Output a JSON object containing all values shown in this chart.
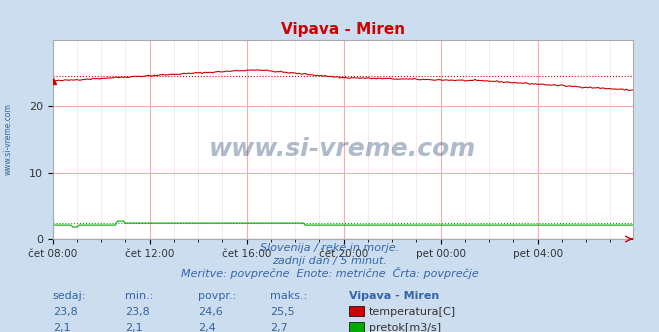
{
  "title": "Vipava - Miren",
  "bg_color": "#ccddef",
  "plot_bg_color": "#ffffff",
  "temp_color": "#cc0000",
  "flow_color": "#00aa00",
  "height_color": "#0000cc",
  "x_tick_labels": [
    "čet 08:00",
    "čet 12:00",
    "čet 16:00",
    "čet 20:00",
    "pet 00:00",
    "pet 04:00"
  ],
  "x_tick_positions": [
    0,
    48,
    96,
    144,
    192,
    240
  ],
  "y_ticks": [
    0,
    10,
    20
  ],
  "y_lim": [
    0,
    30
  ],
  "temp_avg": 24.6,
  "flow_avg": 2.4,
  "subtitle1": "Slovenija / reke in morje.",
  "subtitle2": "zadnji dan / 5 minut.",
  "subtitle3": "Meritve: povprečne  Enote: metrične  Črta: povprečje",
  "subtitle_color": "#3366aa",
  "label_color": "#3366aa",
  "watermark": "www.si-vreme.com",
  "watermark_color": "#1a3a6b",
  "sedaj_label": "sedaj:",
  "min_label": "min.:",
  "povpr_label": "povpr.:",
  "maks_label": "maks.:",
  "station_label": "Vipava - Miren",
  "temp_label": "temperatura[C]",
  "flow_label": "pretok[m3/s]",
  "temp_sedaj": "23,8",
  "temp_min": "23,8",
  "temp_povpr": "24,6",
  "temp_maks": "25,5",
  "flow_sedaj": "2,1",
  "flow_min": "2,1",
  "flow_povpr": "2,4",
  "flow_maks": "2,7",
  "n_points": 288
}
